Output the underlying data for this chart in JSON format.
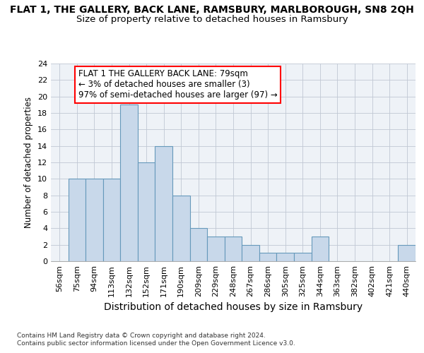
{
  "title": "FLAT 1, THE GALLERY, BACK LANE, RAMSBURY, MARLBOROUGH, SN8 2QH",
  "subtitle": "Size of property relative to detached houses in Ramsbury",
  "xlabel": "Distribution of detached houses by size in Ramsbury",
  "ylabel": "Number of detached properties",
  "categories": [
    "56sqm",
    "75sqm",
    "94sqm",
    "113sqm",
    "132sqm",
    "152sqm",
    "171sqm",
    "190sqm",
    "209sqm",
    "229sqm",
    "248sqm",
    "267sqm",
    "286sqm",
    "305sqm",
    "325sqm",
    "344sqm",
    "363sqm",
    "382sqm",
    "402sqm",
    "421sqm",
    "440sqm"
  ],
  "values": [
    0,
    10,
    10,
    10,
    19,
    12,
    14,
    8,
    4,
    3,
    3,
    2,
    1,
    1,
    1,
    3,
    0,
    0,
    0,
    0,
    2
  ],
  "bar_color": "#c8d8ea",
  "bar_edgecolor": "#6699bb",
  "annotation_text": "FLAT 1 THE GALLERY BACK LANE: 79sqm\n← 3% of detached houses are smaller (3)\n97% of semi-detached houses are larger (97) →",
  "annotation_box_edgecolor": "red",
  "annotation_box_facecolor": "white",
  "ylim": [
    0,
    24
  ],
  "yticks": [
    0,
    2,
    4,
    6,
    8,
    10,
    12,
    14,
    16,
    18,
    20,
    22,
    24
  ],
  "footer_line1": "Contains HM Land Registry data © Crown copyright and database right 2024.",
  "footer_line2": "Contains public sector information licensed under the Open Government Licence v3.0.",
  "background_color": "#eef2f7",
  "grid_color": "#c0c8d4",
  "title_fontsize": 10,
  "subtitle_fontsize": 9.5,
  "xlabel_fontsize": 10,
  "ylabel_fontsize": 8.5,
  "tick_fontsize": 8,
  "annot_fontsize": 8.5,
  "footer_fontsize": 6.5
}
